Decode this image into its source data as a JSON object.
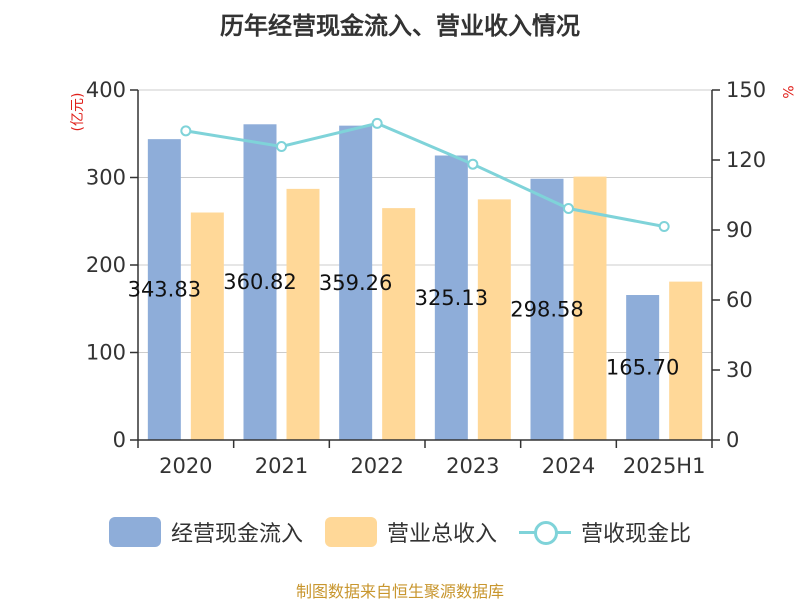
{
  "chart_data": {
    "type": "bar",
    "title": "历年经营现金流入、营业收入情况",
    "categories": [
      "2020",
      "2021",
      "2022",
      "2023",
      "2024",
      "2025H1"
    ],
    "y_left": {
      "unit": "(亿元)",
      "range": [
        0,
        400
      ],
      "ticks": [
        "0",
        "100",
        "200",
        "300",
        "400"
      ]
    },
    "y_right": {
      "unit": "%",
      "range": [
        0,
        150
      ],
      "ticks": [
        "0",
        "30",
        "60",
        "90",
        "120",
        "150"
      ]
    },
    "series": [
      {
        "name": "经营现金流入",
        "type": "bar",
        "axis": "left",
        "color": "#8eadd9",
        "values": [
          343.83,
          360.82,
          359.26,
          325.13,
          298.58,
          165.7
        ],
        "labels": [
          "343.83",
          "360.82",
          "359.26",
          "325.13",
          "298.58",
          "165.70"
        ]
      },
      {
        "name": "营业总收入",
        "type": "bar",
        "axis": "left",
        "color": "#ffd898",
        "values": [
          260,
          287,
          265,
          275,
          301,
          181
        ]
      },
      {
        "name": "营收现金比",
        "type": "line",
        "axis": "right",
        "color": "#7fd3d9",
        "values": [
          132.5,
          125.8,
          135.7,
          118.2,
          99.2,
          91.5
        ]
      }
    ],
    "grid": true,
    "legend_position": "bottom"
  },
  "source_text": "制图数据来自恒生聚源数据库"
}
